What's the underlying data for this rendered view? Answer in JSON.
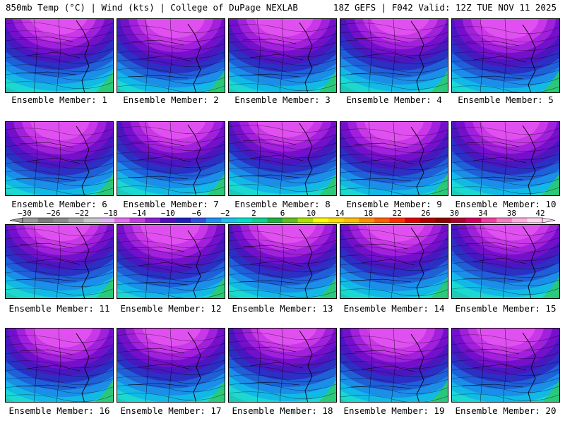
{
  "header": {
    "left": "850mb Temp (°C) | Wind (kts) | College of DuPage NEXLAB",
    "right": "18Z GEFS | F042 Valid: 12Z TUE NOV 11 2025"
  },
  "panels": [
    {
      "label": "Ensemble Member: 1"
    },
    {
      "label": "Ensemble Member: 2"
    },
    {
      "label": "Ensemble Member: 3"
    },
    {
      "label": "Ensemble Member: 4"
    },
    {
      "label": "Ensemble Member: 5"
    },
    {
      "label": "Ensemble Member: 6"
    },
    {
      "label": "Ensemble Member: 7"
    },
    {
      "label": "Ensemble Member: 8"
    },
    {
      "label": "Ensemble Member: 9"
    },
    {
      "label": "Ensemble Member: 10"
    },
    {
      "label": "Ensemble Member: 11"
    },
    {
      "label": "Ensemble Member: 12"
    },
    {
      "label": "Ensemble Member: 13"
    },
    {
      "label": "Ensemble Member: 14"
    },
    {
      "label": "Ensemble Member: 15"
    },
    {
      "label": "Ensemble Member: 16"
    },
    {
      "label": "Ensemble Member: 17"
    },
    {
      "label": "Ensemble Member: 18"
    },
    {
      "label": "Ensemble Member: 19"
    },
    {
      "label": "Ensemble Member: 20"
    }
  ],
  "colorbar": {
    "tick_labels": [
      "−30",
      "−26",
      "−22",
      "−18",
      "−14",
      "−10",
      "−6",
      "−2",
      "2",
      "6",
      "10",
      "14",
      "18",
      "22",
      "26",
      "30",
      "34",
      "38",
      "42"
    ],
    "colors": [
      "#9a9a9a",
      "#7d7d7d",
      "#8c8c8c",
      "#a8a8a8",
      "#c8c8c8",
      "#e0b4f0",
      "#e070f0",
      "#c040e0",
      "#8a20d0",
      "#5010c0",
      "#2020c0",
      "#3050e0",
      "#2090f0",
      "#20c0f0",
      "#00e0c8",
      "#10d090",
      "#20b040",
      "#60c020",
      "#b0e000",
      "#ffff00",
      "#ffe000",
      "#ffc000",
      "#ff9000",
      "#ff6000",
      "#ff3000",
      "#e00000",
      "#b00000",
      "#900000",
      "#b00030",
      "#d00060",
      "#f040a0",
      "#f080c0",
      "#ffb0e0",
      "#ffd8f0"
    ]
  }
}
